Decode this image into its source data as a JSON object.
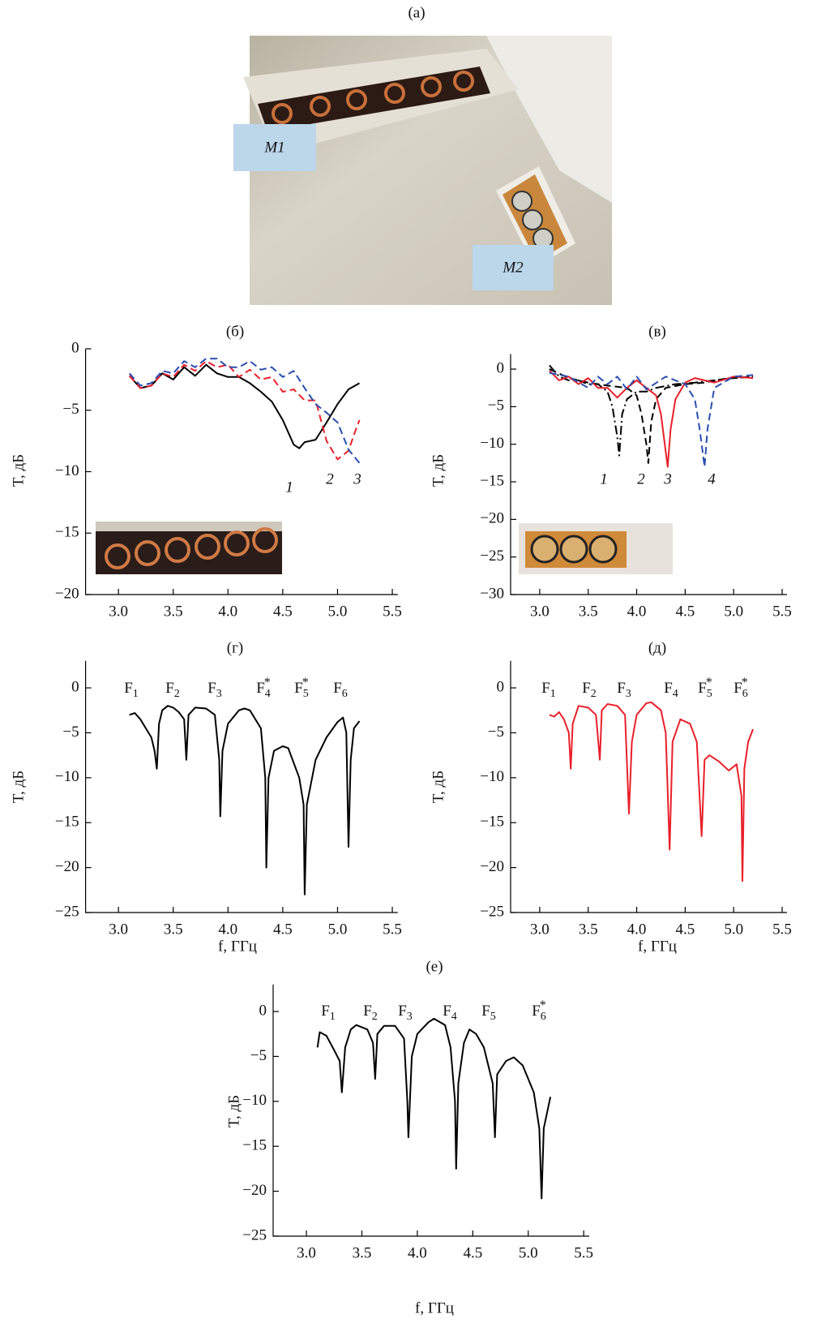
{
  "figure": {
    "photo": {
      "panel": "(а)",
      "labels": [
        "M1",
        "M2"
      ]
    }
  },
  "chart_data": [
    {
      "type": "line",
      "panel": "(б)",
      "ylabel": "T, дБ",
      "xlim": [
        2.7,
        5.55
      ],
      "ylim": [
        -20,
        0
      ],
      "xticks": [
        {
          "value": 3,
          "label": "3.0"
        },
        {
          "value": 3.5,
          "label": "3.5"
        },
        {
          "value": 4,
          "label": "4.0"
        },
        {
          "value": 4.5,
          "label": "4.5"
        },
        {
          "value": 5,
          "label": "5.0"
        },
        {
          "value": 5.5,
          "label": "5.5"
        }
      ],
      "yticks": [
        0,
        {
          "value": -5,
          "label": "−5"
        },
        {
          "value": -10,
          "label": "−10"
        },
        {
          "value": -15,
          "label": "−15"
        },
        {
          "value": -20,
          "label": "−20"
        }
      ],
      "series": [
        {
          "name": "1",
          "color": "#000000",
          "dash": "solid",
          "x": [
            3.1,
            3.2,
            3.3,
            3.4,
            3.5,
            3.6,
            3.7,
            3.8,
            3.9,
            4.0,
            4.1,
            4.2,
            4.3,
            4.4,
            4.5,
            4.6,
            4.65,
            4.7,
            4.8,
            4.9,
            5.0,
            5.1,
            5.2
          ],
          "values": [
            -2.2,
            -3.2,
            -3.0,
            -2.0,
            -2.5,
            -1.5,
            -2.2,
            -1.3,
            -2.0,
            -2.3,
            -2.3,
            -2.8,
            -3.5,
            -4.3,
            -5.8,
            -7.8,
            -8.1,
            -7.6,
            -7.4,
            -6.0,
            -4.5,
            -3.3,
            -2.8
          ]
        },
        {
          "name": "2",
          "color": "#e8202a",
          "dash": "dashed",
          "x": [
            3.1,
            3.2,
            3.3,
            3.4,
            3.5,
            3.6,
            3.7,
            3.8,
            3.9,
            4.0,
            4.1,
            4.2,
            4.3,
            4.4,
            4.5,
            4.6,
            4.7,
            4.8,
            4.9,
            5.0,
            5.1,
            5.15,
            5.2
          ],
          "values": [
            -2.2,
            -3.2,
            -3.0,
            -2.0,
            -2.3,
            -1.3,
            -1.8,
            -1.0,
            -1.5,
            -1.3,
            -2.3,
            -1.7,
            -2.5,
            -2.3,
            -3.5,
            -3.3,
            -4.2,
            -4.2,
            -7.5,
            -9.0,
            -8.3,
            -7.0,
            -5.8
          ]
        },
        {
          "name": "3",
          "color": "#2a4fb0",
          "dash": "dashed",
          "x": [
            3.1,
            3.2,
            3.3,
            3.4,
            3.5,
            3.6,
            3.7,
            3.8,
            3.9,
            4.0,
            4.1,
            4.2,
            4.3,
            4.4,
            4.5,
            4.6,
            4.7,
            4.8,
            4.9,
            5.0,
            5.1,
            5.2
          ],
          "values": [
            -2.0,
            -3.0,
            -2.8,
            -1.8,
            -2.0,
            -1.0,
            -1.5,
            -0.8,
            -0.8,
            -1.5,
            -1.5,
            -1.0,
            -1.7,
            -1.5,
            -2.3,
            -1.8,
            -3.2,
            -4.5,
            -5.2,
            -6.0,
            -8.2,
            -9.3
          ]
        }
      ]
    },
    {
      "type": "line",
      "panel": "(в)",
      "ylabel": "T, дБ",
      "xlim": [
        2.7,
        5.55
      ],
      "ylim": [
        -30,
        2
      ],
      "xticks": [
        {
          "value": 3,
          "label": "3.0"
        },
        {
          "value": 3.5,
          "label": "3.5"
        },
        {
          "value": 4,
          "label": "4.0"
        },
        {
          "value": 4.5,
          "label": "4.5"
        },
        {
          "value": 5,
          "label": "5.0"
        },
        {
          "value": 5.5,
          "label": "5.5"
        }
      ],
      "yticks": [
        0,
        {
          "value": -5,
          "label": "−5"
        },
        {
          "value": -10,
          "label": "−10"
        },
        {
          "value": -15,
          "label": "−15"
        },
        {
          "value": -20,
          "label": "−20"
        },
        {
          "value": -25,
          "label": "−25"
        },
        {
          "value": -30,
          "label": "−30"
        }
      ],
      "series": [
        {
          "name": "1",
          "color": "#000000",
          "dash": "dashdot",
          "x": [
            3.1,
            3.2,
            3.3,
            3.4,
            3.5,
            3.6,
            3.7,
            3.75,
            3.8,
            3.82,
            3.85,
            3.9,
            4.0,
            4.1,
            4.2,
            4.4,
            4.6,
            4.8,
            5.0,
            5.2
          ],
          "values": [
            0.5,
            -1,
            -1.5,
            -1.5,
            -2,
            -2,
            -3,
            -5,
            -9,
            -11.5,
            -6,
            -4,
            -3,
            -3,
            -2.5,
            -2,
            -1.8,
            -1.5,
            -1.2,
            -1
          ]
        },
        {
          "name": "2",
          "color": "#000000",
          "dash": "dashed",
          "x": [
            3.1,
            3.3,
            3.5,
            3.7,
            3.9,
            4.0,
            4.05,
            4.1,
            4.12,
            4.15,
            4.2,
            4.3,
            4.5,
            4.7,
            4.9,
            5.2
          ],
          "values": [
            0,
            -1.2,
            -1.8,
            -2.2,
            -2.5,
            -3.5,
            -6,
            -10,
            -12.5,
            -7,
            -4,
            -2.5,
            -2,
            -1.8,
            -1.3,
            -1
          ]
        },
        {
          "name": "3",
          "color": "#e8202a",
          "dash": "solid",
          "x": [
            3.1,
            3.2,
            3.3,
            3.4,
            3.5,
            3.6,
            3.7,
            3.8,
            3.9,
            4.0,
            4.1,
            4.2,
            4.25,
            4.3,
            4.32,
            4.35,
            4.4,
            4.5,
            4.6,
            4.8,
            5.0,
            5.2
          ],
          "values": [
            -0.2,
            -1.5,
            -1,
            -2,
            -1.2,
            -2.5,
            -2.5,
            -3.8,
            -2.5,
            -1.5,
            -2.5,
            -3.5,
            -6,
            -11,
            -13,
            -8,
            -4,
            -1.8,
            -1.2,
            -1.8,
            -1,
            -1.2
          ]
        },
        {
          "name": "4",
          "color": "#2a4fb0",
          "dash": "dashed",
          "x": [
            3.1,
            3.3,
            3.5,
            3.6,
            3.7,
            3.8,
            3.9,
            4.0,
            4.1,
            4.3,
            4.5,
            4.6,
            4.65,
            4.7,
            4.73,
            4.8,
            5.0,
            5.2
          ],
          "values": [
            -0.5,
            -1,
            -2.5,
            -1,
            -2,
            -1,
            -2.7,
            -1,
            -2.7,
            -1,
            -2,
            -4,
            -8,
            -13,
            -8,
            -2.5,
            -1,
            -0.8
          ]
        }
      ]
    },
    {
      "type": "line",
      "panel": "(г)",
      "ylabel": "T, дБ",
      "xlabel": "f, ГГц",
      "xlim": [
        2.7,
        5.55
      ],
      "ylim": [
        -25,
        3
      ],
      "xticks": [
        {
          "value": 3,
          "label": "3.0"
        },
        {
          "value": 3.5,
          "label": "3.5"
        },
        {
          "value": 4,
          "label": "4.0"
        },
        {
          "value": 4.5,
          "label": "4.5"
        },
        {
          "value": 5,
          "label": "5.0"
        },
        {
          "value": 5.5,
          "label": "5.5"
        }
      ],
      "yticks": [
        0,
        {
          "value": -5,
          "label": "−5"
        },
        {
          "value": -10,
          "label": "−10"
        },
        {
          "value": -15,
          "label": "−15"
        },
        {
          "value": -20,
          "label": "−20"
        },
        {
          "value": -25,
          "label": "−25"
        }
      ],
      "annotations": [
        {
          "text": "F",
          "sub": "1"
        },
        {
          "text": "F",
          "sub": "2"
        },
        {
          "text": "F",
          "sub": "3"
        },
        {
          "text": "F",
          "sub": "4",
          "sup": "*"
        },
        {
          "text": "F",
          "sub": "5",
          "sup": "*"
        },
        {
          "text": "F",
          "sub": "6"
        }
      ],
      "series": [
        {
          "color": "#000000",
          "dash": "solid",
          "x": [
            3.1,
            3.15,
            3.2,
            3.25,
            3.3,
            3.33,
            3.35,
            3.37,
            3.4,
            3.45,
            3.5,
            3.55,
            3.6,
            3.62,
            3.64,
            3.7,
            3.8,
            3.88,
            3.92,
            3.93,
            3.95,
            4.0,
            4.1,
            4.15,
            4.2,
            4.3,
            4.34,
            4.35,
            4.37,
            4.42,
            4.5,
            4.55,
            4.65,
            4.69,
            4.7,
            4.72,
            4.8,
            4.9,
            5.0,
            5.05,
            5.08,
            5.1,
            5.12,
            5.15,
            5.2
          ],
          "values": [
            -3,
            -2.8,
            -3.5,
            -4.5,
            -5.5,
            -7,
            -9,
            -4,
            -2.5,
            -2,
            -2.2,
            -2.7,
            -3.5,
            -8,
            -3,
            -2.2,
            -2.3,
            -3,
            -8,
            -14.3,
            -7,
            -4,
            -2.5,
            -2.3,
            -2.5,
            -4.5,
            -10,
            -20,
            -10,
            -7,
            -6.5,
            -6.7,
            -10,
            -13,
            -23,
            -13,
            -8,
            -5.5,
            -3.8,
            -3.3,
            -5,
            -17.7,
            -8,
            -4.5,
            -3.7
          ]
        }
      ]
    },
    {
      "type": "line",
      "panel": "(д)",
      "ylabel": "T, дБ",
      "xlabel": "f, ГГц",
      "xlim": [
        2.7,
        5.55
      ],
      "ylim": [
        -25,
        3
      ],
      "xticks": [
        {
          "value": 3,
          "label": "3.0"
        },
        {
          "value": 3.5,
          "label": "3.5"
        },
        {
          "value": 4,
          "label": "4.0"
        },
        {
          "value": 4.5,
          "label": "4.5"
        },
        {
          "value": 5,
          "label": "5.0"
        },
        {
          "value": 5.5,
          "label": "5.5"
        }
      ],
      "yticks": [
        0,
        {
          "value": -5,
          "label": "−5"
        },
        {
          "value": -10,
          "label": "−10"
        },
        {
          "value": -15,
          "label": "−15"
        },
        {
          "value": -20,
          "label": "−20"
        },
        {
          "value": -25,
          "label": "−25"
        }
      ],
      "annotations": [
        {
          "text": "F",
          "sub": "1"
        },
        {
          "text": "F",
          "sub": "2"
        },
        {
          "text": "F",
          "sub": "3"
        },
        {
          "text": "F",
          "sub": "4"
        },
        {
          "text": "F",
          "sub": "5",
          "sup": "*"
        },
        {
          "text": "F",
          "sub": "6",
          "sup": "*"
        }
      ],
      "series": [
        {
          "color": "#e8202a",
          "dash": "solid",
          "x": [
            3.1,
            3.15,
            3.2,
            3.25,
            3.3,
            3.32,
            3.34,
            3.4,
            3.5,
            3.58,
            3.62,
            3.64,
            3.7,
            3.8,
            3.88,
            3.92,
            3.95,
            4.0,
            4.1,
            4.15,
            4.25,
            4.3,
            4.34,
            4.37,
            4.45,
            4.55,
            4.62,
            4.67,
            4.7,
            4.75,
            4.85,
            4.95,
            5.03,
            5.08,
            5.09,
            5.11,
            5.15,
            5.2
          ],
          "values": [
            -3,
            -3.2,
            -2.7,
            -3.5,
            -5,
            -9,
            -4,
            -2,
            -2.2,
            -3,
            -8,
            -2.5,
            -1.8,
            -2,
            -3,
            -14,
            -6,
            -3,
            -1.7,
            -1.6,
            -2.5,
            -5,
            -18,
            -6,
            -3.5,
            -4,
            -6,
            -16.5,
            -8,
            -7.5,
            -8.2,
            -9.2,
            -8.5,
            -12,
            -21.5,
            -9,
            -6,
            -4.6
          ]
        }
      ]
    },
    {
      "type": "line",
      "panel": "(е)",
      "ylabel": "T, дБ",
      "xlabel": "f, ГГц",
      "xlim": [
        2.7,
        5.55
      ],
      "ylim": [
        -25,
        3
      ],
      "xticks": [
        {
          "value": 3,
          "label": "3.0"
        },
        {
          "value": 3.5,
          "label": "3.5"
        },
        {
          "value": 4,
          "label": "4.0"
        },
        {
          "value": 4.5,
          "label": "4.5"
        },
        {
          "value": 5,
          "label": "5.0"
        },
        {
          "value": 5.5,
          "label": "5.5"
        }
      ],
      "yticks": [
        0,
        {
          "value": -5,
          "label": "−5"
        },
        {
          "value": -10,
          "label": "−10"
        },
        {
          "value": -15,
          "label": "−15"
        },
        {
          "value": -20,
          "label": "−20"
        },
        {
          "value": -25,
          "label": "−25"
        }
      ],
      "annotations": [
        {
          "text": "F",
          "sub": "1"
        },
        {
          "text": "F",
          "sub": "2"
        },
        {
          "text": "F",
          "sub": "3"
        },
        {
          "text": "F",
          "sub": "4"
        },
        {
          "text": "F",
          "sub": "5"
        },
        {
          "text": "F",
          "sub": "6",
          "sup": "*"
        }
      ],
      "series": [
        {
          "color": "#000000",
          "dash": "solid",
          "x": [
            3.1,
            3.12,
            3.18,
            3.25,
            3.3,
            3.32,
            3.35,
            3.4,
            3.45,
            3.55,
            3.6,
            3.62,
            3.64,
            3.7,
            3.8,
            3.88,
            3.91,
            3.92,
            3.95,
            4.0,
            4.1,
            4.15,
            4.25,
            4.3,
            4.34,
            4.35,
            4.37,
            4.42,
            4.47,
            4.53,
            4.6,
            4.68,
            4.7,
            4.72,
            4.8,
            4.87,
            4.95,
            5.05,
            5.1,
            5.12,
            5.14,
            5.2
          ],
          "values": [
            -4,
            -2.3,
            -2.7,
            -4.3,
            -5.5,
            -9,
            -4,
            -2,
            -1.5,
            -2,
            -3.5,
            -7.5,
            -2.5,
            -1.6,
            -1.6,
            -3,
            -10,
            -14,
            -5,
            -2.5,
            -1.2,
            -0.8,
            -1.5,
            -4,
            -10,
            -17.5,
            -8,
            -3.5,
            -2,
            -2.5,
            -4,
            -8,
            -14,
            -7,
            -5.5,
            -5.1,
            -6,
            -9,
            -13,
            -20.8,
            -13,
            -9.5
          ]
        }
      ]
    }
  ]
}
